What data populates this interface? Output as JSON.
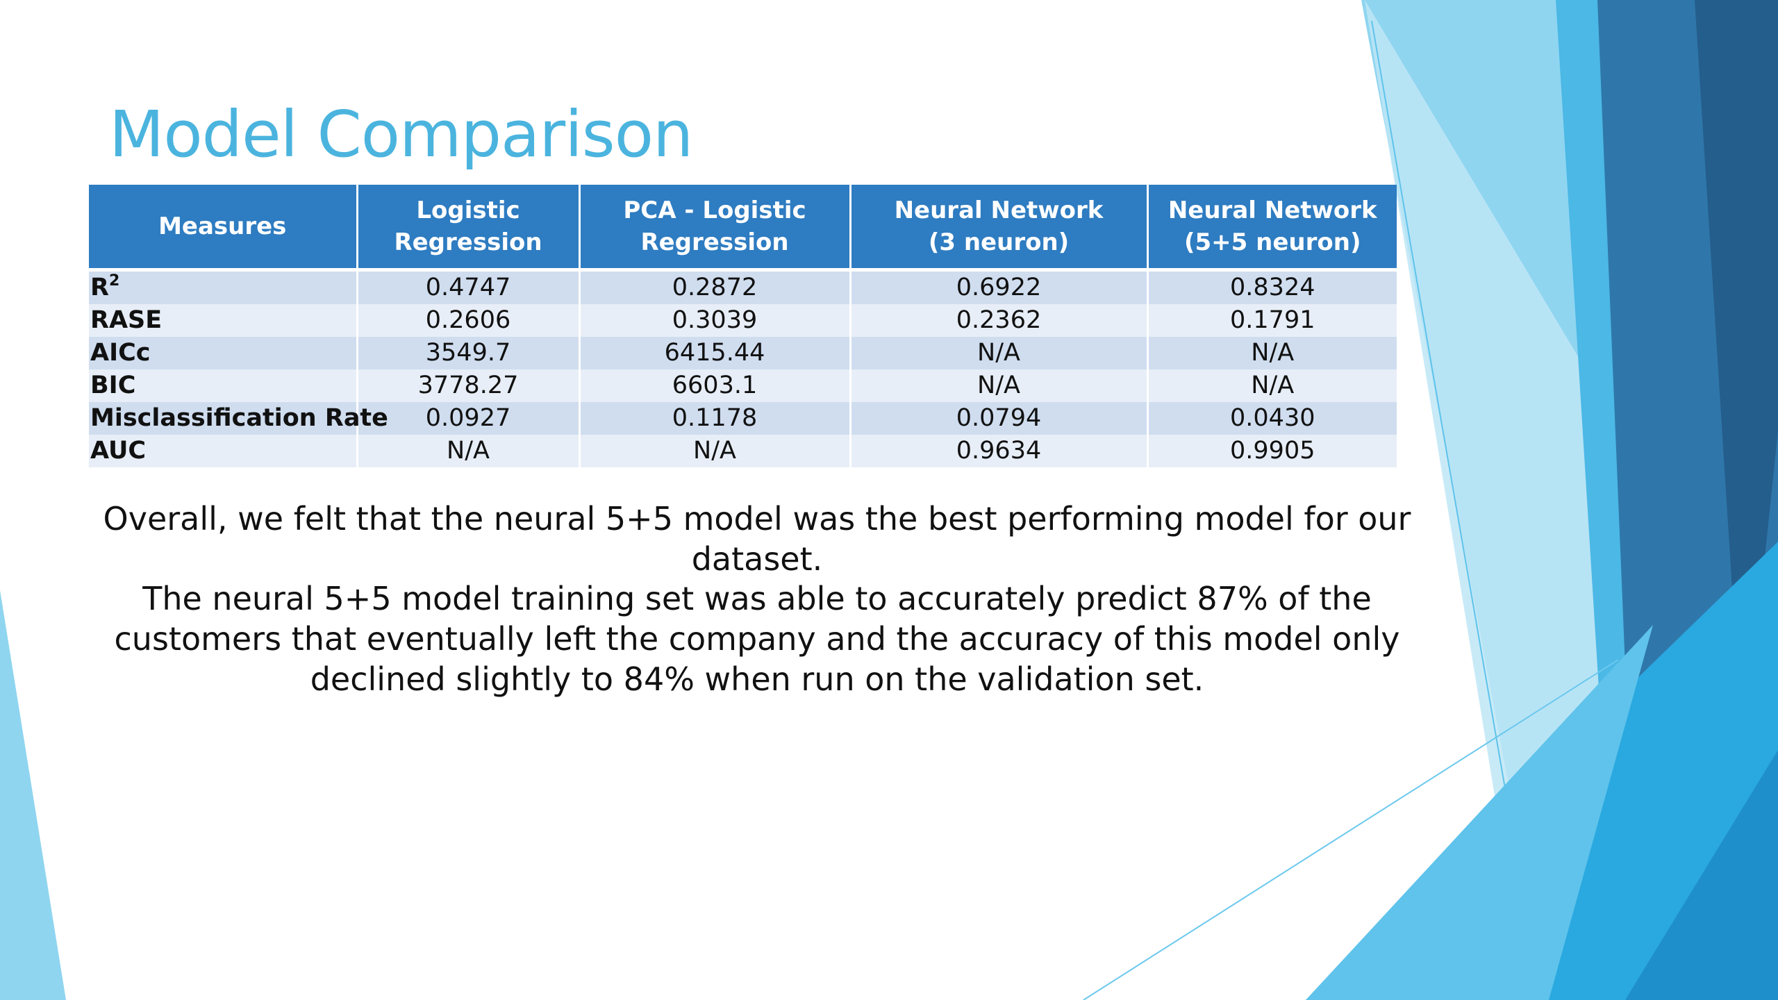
{
  "slide": {
    "title": "Model Comparison",
    "paragraphs": [
      "Overall, we felt that the neural 5+5 model was the best performing model for our dataset.",
      "The neural 5+5 model training set was able to accurately predict 87% of the customers that eventually left the company and the accuracy of this model only declined slightly to 84% when run on the validation set."
    ],
    "colors": {
      "title": "#4BB4DE",
      "table_header": "#2E7CC1",
      "row_band_dark": "#CFDDEF",
      "row_band_light": "#E8EEF7",
      "shape_dark_blue": "#2C6A9B",
      "shape_bright_blue": "#2AA8E0",
      "shape_light_blue": "#8FD5F0"
    }
  },
  "table": {
    "columns": [
      {
        "line1": "Measures",
        "line2": ""
      },
      {
        "line1": "Logistic",
        "line2": "Regression"
      },
      {
        "line1": "PCA - Logistic",
        "line2": "Regression"
      },
      {
        "line1": "Neural Network",
        "line2": "(3 neuron)"
      },
      {
        "line1": "Neural Network",
        "line2": "(5+5 neuron)"
      }
    ],
    "rows": [
      {
        "measure": "R",
        "sup": "2",
        "values": [
          "0.4747",
          "0.2872",
          "0.6922",
          "0.8324"
        ]
      },
      {
        "measure": "RASE",
        "sup": "",
        "values": [
          "0.2606",
          "0.3039",
          "0.2362",
          "0.1791"
        ]
      },
      {
        "measure": "AICc",
        "sup": "",
        "values": [
          "3549.7",
          "6415.44",
          "N/A",
          "N/A"
        ]
      },
      {
        "measure": "BIC",
        "sup": "",
        "values": [
          "3778.27",
          "6603.1",
          "N/A",
          "N/A"
        ]
      },
      {
        "measure": "Misclassification Rate",
        "sup": "",
        "values": [
          "0.0927",
          "0.1178",
          "0.0794",
          "0.0430"
        ]
      },
      {
        "measure": "AUC",
        "sup": "",
        "values": [
          "N/A",
          "N/A",
          "0.9634",
          "0.9905"
        ]
      }
    ]
  }
}
